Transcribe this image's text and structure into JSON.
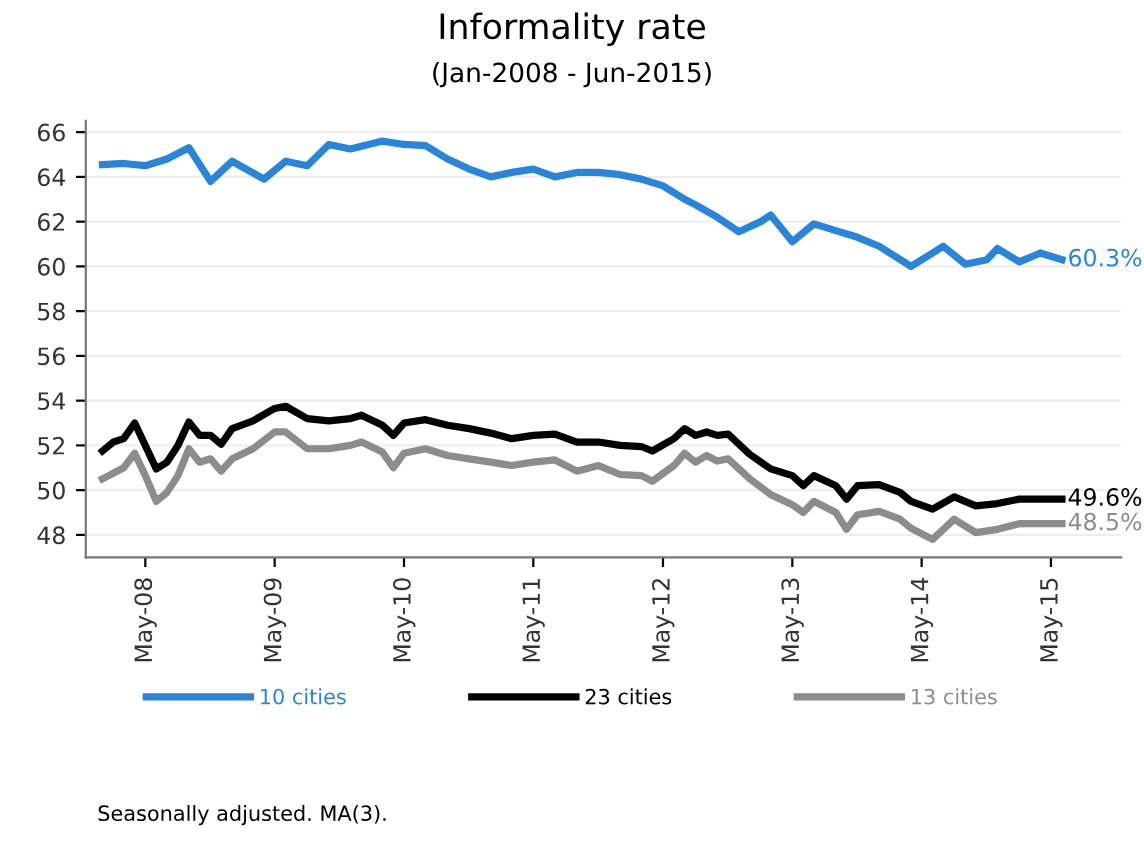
{
  "chart_data": {
    "type": "line",
    "title": "Informality rate",
    "subtitle": "(Jan-2008 - Jun-2015)",
    "xlim": [
      "2007-11-15",
      "2015-11-15"
    ],
    "xticks": [
      {
        "value": "2008-05",
        "label": "May-08"
      },
      {
        "value": "2009-05",
        "label": "May-09"
      },
      {
        "value": "2010-05",
        "label": "May-10"
      },
      {
        "value": "2011-05",
        "label": "May-11"
      },
      {
        "value": "2012-05",
        "label": "May-12"
      },
      {
        "value": "2013-05",
        "label": "May-13"
      },
      {
        "value": "2014-05",
        "label": "May-14"
      },
      {
        "value": "2015-05",
        "label": "May-15"
      }
    ],
    "ylim": [
      47,
      66.5
    ],
    "yticks": [
      48,
      50,
      52,
      54,
      56,
      58,
      60,
      62,
      64,
      66
    ],
    "grid": "y",
    "legend": "bottom",
    "marker": "none",
    "line_style": "solid",
    "series": [
      {
        "name": "10 cities",
        "color": "#2a85d6",
        "x": [
          "2008-01",
          "2008-03",
          "2008-05",
          "2008-07",
          "2008-09",
          "2008-11",
          "2009-01",
          "2009-04",
          "2009-06",
          "2009-08",
          "2009-10",
          "2009-12",
          "2010-03",
          "2010-05",
          "2010-07",
          "2010-09",
          "2010-11",
          "2011-01",
          "2011-03",
          "2011-05",
          "2011-07",
          "2011-09",
          "2011-11",
          "2012-01",
          "2012-03",
          "2012-05",
          "2012-07",
          "2012-08",
          "2012-10",
          "2012-12",
          "2013-02",
          "2013-03",
          "2013-05",
          "2013-07",
          "2013-09",
          "2013-11",
          "2014-01",
          "2014-04",
          "2014-06",
          "2014-07",
          "2014-09",
          "2014-11",
          "2014-12",
          "2015-02",
          "2015-04",
          "2015-06"
        ],
        "values": [
          64.55,
          64.6,
          64.5,
          64.8,
          65.3,
          63.8,
          64.7,
          63.9,
          64.7,
          64.5,
          65.45,
          65.25,
          65.6,
          65.45,
          65.4,
          64.8,
          64.35,
          64.0,
          64.2,
          64.35,
          64.0,
          64.2,
          64.2,
          64.1,
          63.9,
          63.6,
          63.0,
          62.75,
          62.2,
          61.55,
          62.0,
          62.3,
          61.1,
          61.9,
          61.6,
          61.3,
          60.9,
          60.0,
          60.6,
          60.9,
          60.1,
          60.3,
          60.8,
          60.2,
          60.6,
          60.3
        ]
      },
      {
        "name": "23 cities",
        "color": "#000000",
        "x": [
          "2008-01",
          "2008-02",
          "2008-03",
          "2008-04",
          "2008-06",
          "2008-07",
          "2008-08",
          "2008-09",
          "2008-10",
          "2008-11",
          "2008-12",
          "2009-01",
          "2009-03",
          "2009-05",
          "2009-06",
          "2009-08",
          "2009-10",
          "2009-12",
          "2010-01",
          "2010-03",
          "2010-04",
          "2010-05",
          "2010-07",
          "2010-09",
          "2010-11",
          "2011-01",
          "2011-03",
          "2011-05",
          "2011-07",
          "2011-09",
          "2011-11",
          "2012-01",
          "2012-03",
          "2012-04",
          "2012-06",
          "2012-07",
          "2012-08",
          "2012-09",
          "2012-10",
          "2012-11",
          "2013-01",
          "2013-03",
          "2013-05",
          "2013-06",
          "2013-07",
          "2013-09",
          "2013-10",
          "2013-11",
          "2014-01",
          "2014-03",
          "2014-04",
          "2014-06",
          "2014-08",
          "2014-10",
          "2014-12",
          "2015-02",
          "2015-06"
        ],
        "values": [
          51.75,
          52.15,
          52.3,
          53.0,
          50.95,
          51.25,
          52.0,
          53.05,
          52.45,
          52.45,
          52.05,
          52.75,
          53.1,
          53.65,
          53.75,
          53.2,
          53.1,
          53.2,
          53.35,
          52.9,
          52.45,
          53.0,
          53.15,
          52.9,
          52.75,
          52.55,
          52.3,
          52.45,
          52.5,
          52.15,
          52.15,
          52.0,
          51.95,
          51.75,
          52.3,
          52.75,
          52.45,
          52.6,
          52.45,
          52.5,
          51.6,
          50.95,
          50.65,
          50.2,
          50.65,
          50.2,
          49.6,
          50.2,
          50.25,
          49.9,
          49.5,
          49.15,
          49.7,
          49.3,
          49.4,
          49.6,
          49.6
        ]
      },
      {
        "name": "13 cities",
        "color": "#8c8c8c",
        "x": [
          "2008-01",
          "2008-03",
          "2008-04",
          "2008-05",
          "2008-06",
          "2008-07",
          "2008-08",
          "2008-09",
          "2008-10",
          "2008-11",
          "2008-12",
          "2009-01",
          "2009-03",
          "2009-05",
          "2009-06",
          "2009-08",
          "2009-10",
          "2009-12",
          "2010-01",
          "2010-03",
          "2010-04",
          "2010-05",
          "2010-07",
          "2010-09",
          "2010-11",
          "2011-01",
          "2011-03",
          "2011-05",
          "2011-07",
          "2011-09",
          "2011-11",
          "2012-01",
          "2012-03",
          "2012-04",
          "2012-06",
          "2012-07",
          "2012-08",
          "2012-09",
          "2012-10",
          "2012-11",
          "2013-01",
          "2013-03",
          "2013-05",
          "2013-06",
          "2013-07",
          "2013-09",
          "2013-10",
          "2013-11",
          "2014-01",
          "2014-03",
          "2014-04",
          "2014-06",
          "2014-08",
          "2014-10",
          "2014-12",
          "2015-02",
          "2015-06"
        ],
        "values": [
          50.5,
          51.0,
          51.65,
          50.65,
          49.5,
          49.9,
          50.65,
          51.85,
          51.25,
          51.4,
          50.85,
          51.4,
          51.85,
          52.6,
          52.6,
          51.85,
          51.85,
          52.0,
          52.15,
          51.7,
          51.0,
          51.65,
          51.85,
          51.55,
          51.4,
          51.25,
          51.1,
          51.25,
          51.35,
          50.85,
          51.1,
          50.7,
          50.65,
          50.4,
          51.1,
          51.65,
          51.25,
          51.55,
          51.3,
          51.4,
          50.5,
          49.8,
          49.35,
          49.0,
          49.5,
          49.0,
          48.25,
          48.9,
          49.05,
          48.7,
          48.3,
          47.8,
          48.7,
          48.1,
          48.25,
          48.5,
          48.5
        ]
      }
    ],
    "annotations": [
      {
        "text": "60.3%",
        "x": "2015-06",
        "y": 60.3
      },
      {
        "text": "49.6%",
        "x": "2015-06",
        "y": 49.6
      },
      {
        "text": "48.5%",
        "x": "2015-06",
        "y": 48.5
      },
      "Seasonally adjusted. MA(3)."
    ]
  }
}
